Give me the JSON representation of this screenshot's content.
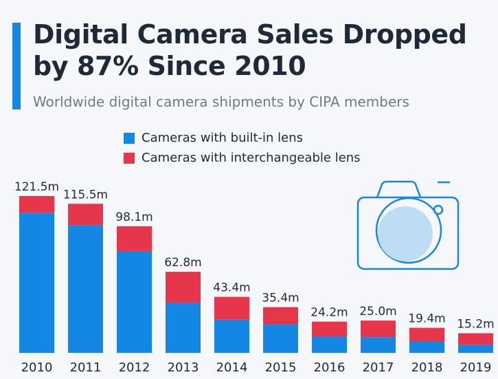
{
  "header": {
    "title": "Digital Camera Sales Dropped by 87% Since 2010",
    "subtitle": "Worldwide digital camera shipments by CIPA members"
  },
  "colors": {
    "accent": "#1487e4",
    "built_in": "#1487e4",
    "interchangeable": "#e5364c",
    "icon_fill": "#bfdcf7",
    "icon_stroke": "#1487e4",
    "text": "#1e2a38"
  },
  "icons": {
    "decoration": "camera-icon"
  },
  "chart_data": {
    "type": "bar",
    "stacked": true,
    "title": "Digital Camera Sales Dropped by 87% Since 2010",
    "subtitle": "Worldwide digital camera shipments by CIPA members",
    "categories": [
      "2010",
      "2011",
      "2012",
      "2013",
      "2014",
      "2015",
      "2016",
      "2017",
      "2018",
      "2019"
    ],
    "series": [
      {
        "name": "Cameras with built-in lens",
        "color": "#1487e4",
        "values": [
          108.6,
          98.7,
          78.9,
          38.6,
          25.7,
          21.9,
          12.5,
          12.1,
          8.8,
          6.2
        ]
      },
      {
        "name": "Cameras with interchangeable lens",
        "color": "#e5364c",
        "values": [
          12.9,
          16.8,
          19.2,
          24.2,
          17.7,
          13.5,
          11.7,
          12.9,
          10.6,
          9.0
        ]
      }
    ],
    "data_labels": [
      "121.5m",
      "115.5m",
      "98.1m",
      "62.8m",
      "43.4m",
      "35.4m",
      "24.2m",
      "25.0m",
      "19.4m",
      "15.2m"
    ],
    "ylim": [
      0,
      121.5
    ],
    "xlabel": "",
    "ylabel": "",
    "grid": false,
    "legend_position": "top-center"
  }
}
